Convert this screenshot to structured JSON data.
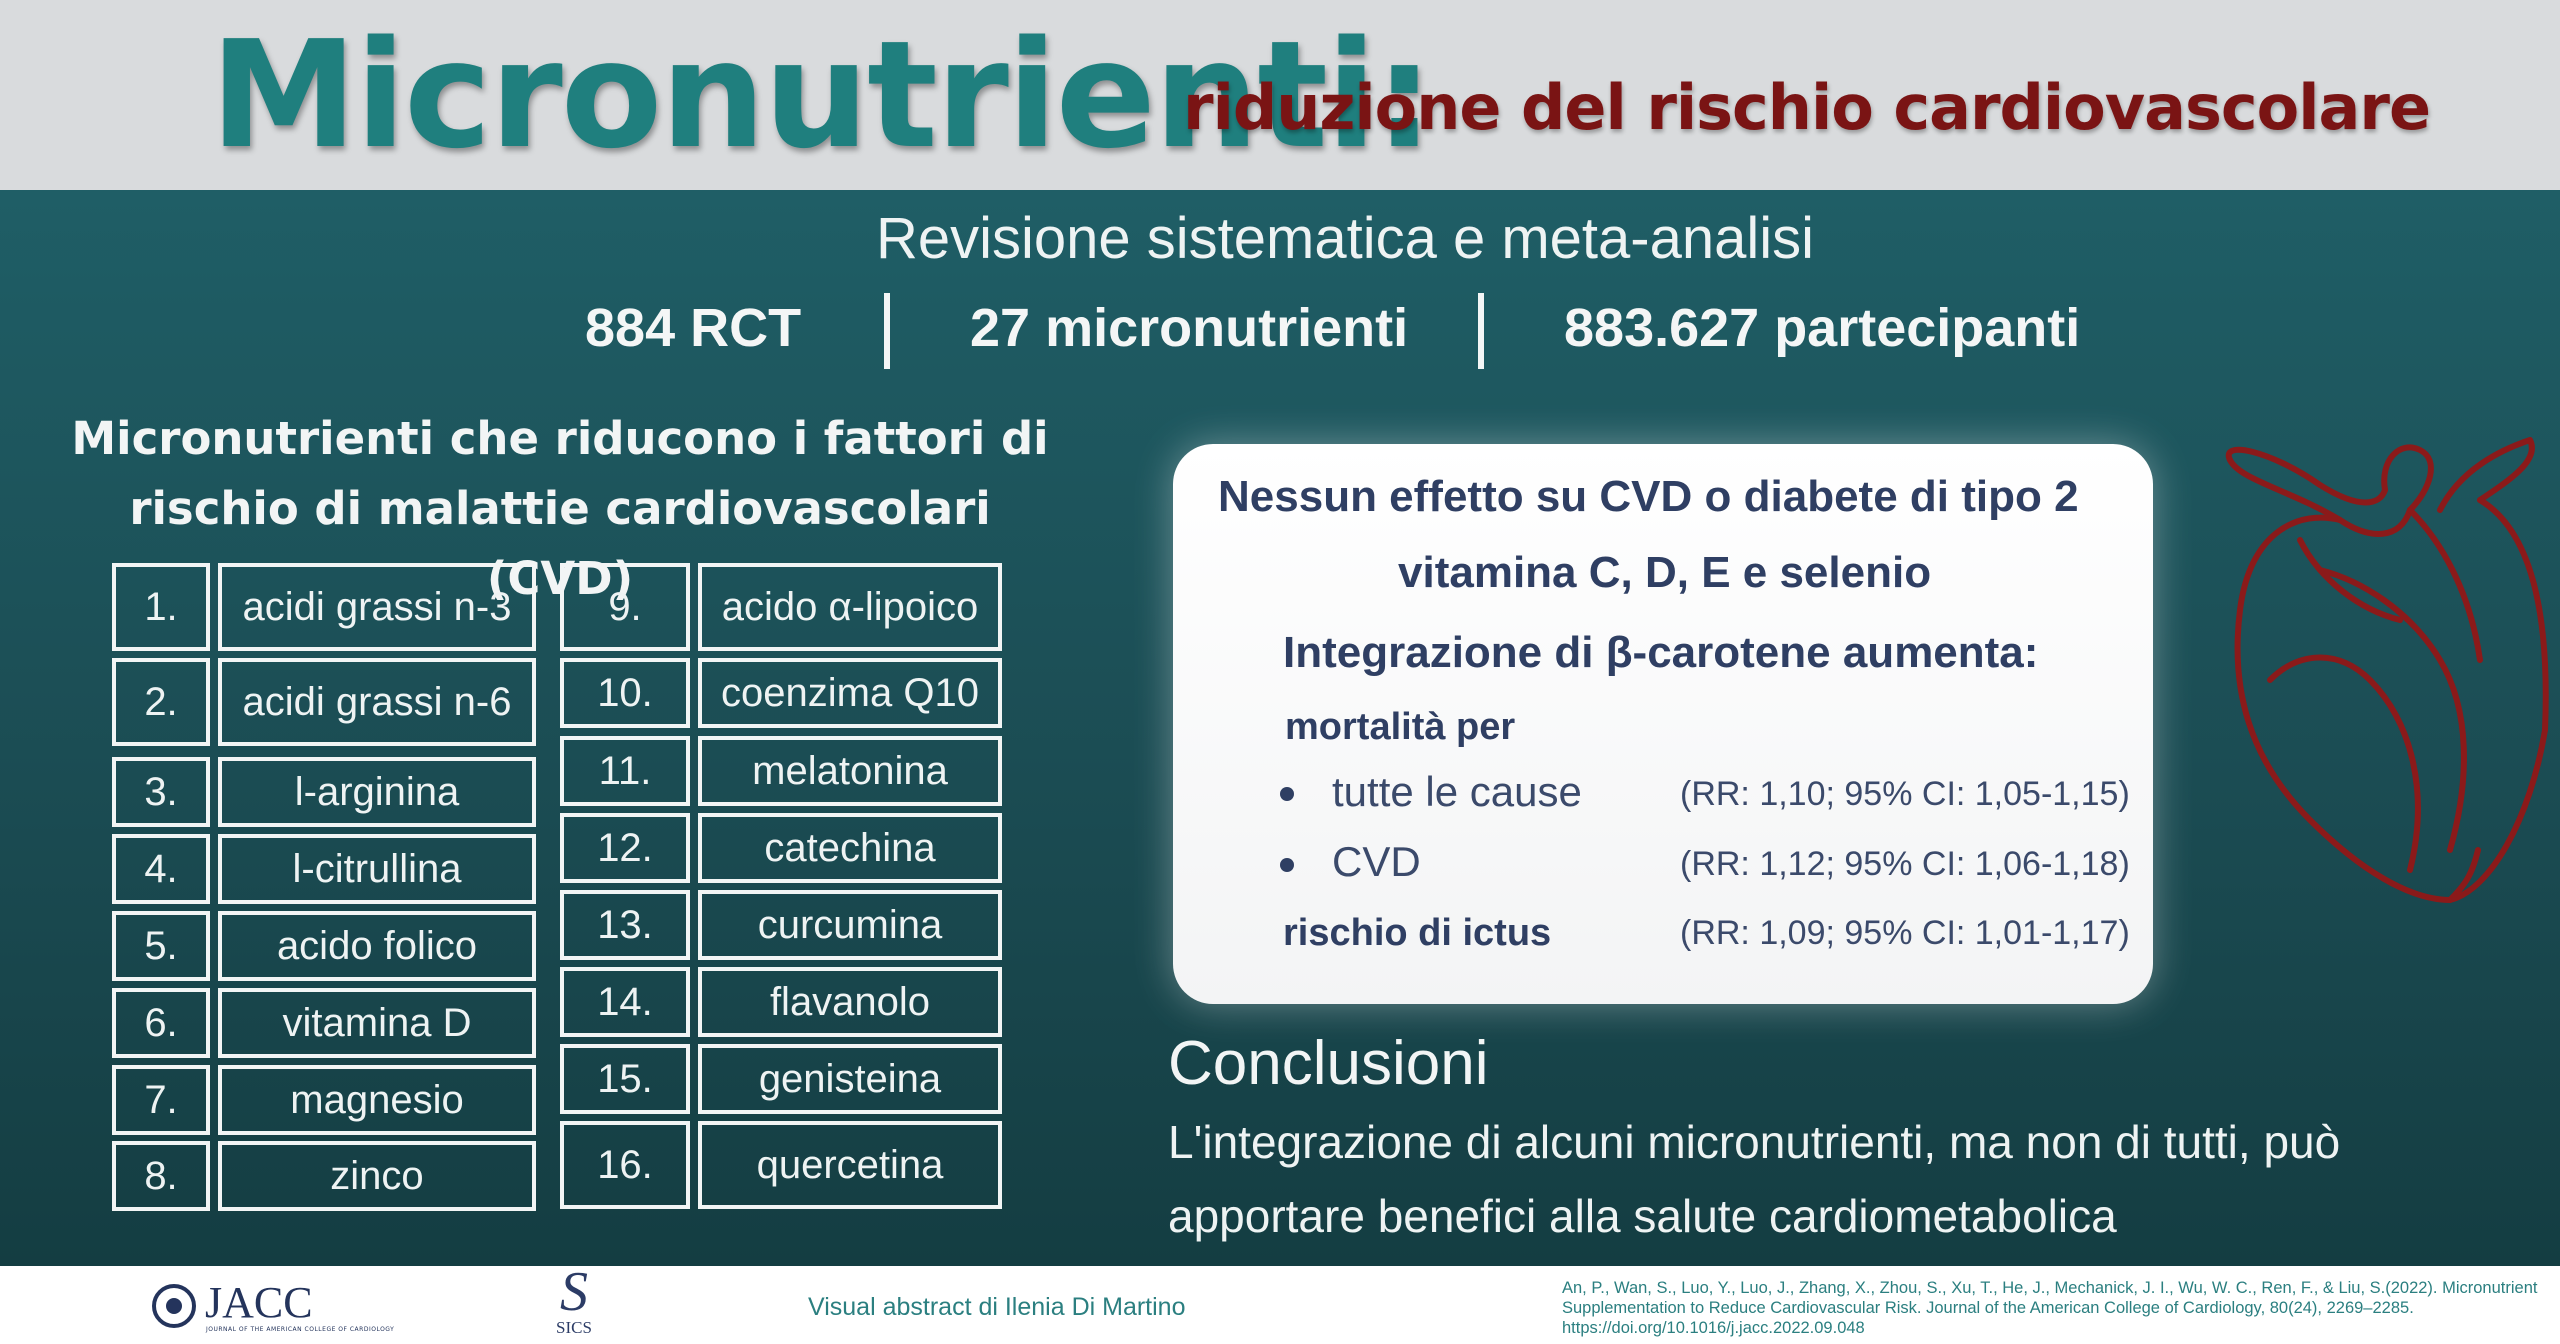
{
  "header": {
    "title": "Micronutrienti:",
    "subtitle": "riduzione del rischio cardiovascolare"
  },
  "study": {
    "type": "Revisione sistematica e meta-analisi",
    "stats": [
      "884 RCT",
      "27 micronutrienti",
      "883.627 partecipanti"
    ]
  },
  "left_panel": {
    "title_line1": "Micronutrienti che riducono i fattori di",
    "title_line2": "rischio di malattie cardiovascolari (CVD)",
    "items": [
      {
        "num": "1.",
        "name": "acidi grassi n-3"
      },
      {
        "num": "2.",
        "name": "acidi grassi n-6"
      },
      {
        "num": "3.",
        "name": "l-arginina"
      },
      {
        "num": "4.",
        "name": "l-citrullina"
      },
      {
        "num": "5.",
        "name": "acido folico"
      },
      {
        "num": "6.",
        "name": "vitamina D"
      },
      {
        "num": "7.",
        "name": "magnesio"
      },
      {
        "num": "8.",
        "name": "zinco"
      },
      {
        "num": "9.",
        "name": "acido α-lipoico"
      },
      {
        "num": "10.",
        "name": "coenzima Q10"
      },
      {
        "num": "11.",
        "name": "melatonina"
      },
      {
        "num": "12.",
        "name": "catechina"
      },
      {
        "num": "13.",
        "name": "curcumina"
      },
      {
        "num": "14.",
        "name": "flavanolo"
      },
      {
        "num": "15.",
        "name": "genisteina"
      },
      {
        "num": "16.",
        "name": "quercetina"
      }
    ]
  },
  "card": {
    "no_effect": "Nessun effetto su CVD o diabete di tipo 2",
    "no_effect_items": "vitamina C, D, E e selenio",
    "beta_heading": "Integrazione di β-carotene  aumenta:",
    "mortality_label": "mortalità per",
    "effects": [
      {
        "label": "tutte le cause",
        "rr": "(RR: 1,10; 95% CI: 1,05-1,15)"
      },
      {
        "label": "CVD",
        "rr": "(RR: 1,12; 95% CI: 1,06-1,18)"
      }
    ],
    "stroke_label": "rischio di ictus",
    "stroke_rr": "(RR: 1,09; 95% CI: 1,01-1,17)"
  },
  "conclusion": {
    "title": "Conclusioni",
    "text": "L'integrazione di alcuni micronutrienti, ma non di tutti, può apportare benefici alla salute cardiometabolica"
  },
  "footer": {
    "jacc": "JACC",
    "jacc_sub": "JOURNAL OF THE AMERICAN COLLEGE OF CARDIOLOGY",
    "sics_mark": "S",
    "sics": "SICS",
    "credit": "Visual abstract di Ilenia Di Martino",
    "citation": "An, P., Wan, S., Luo, Y., Luo, J., Zhang, X., Zhou, S., Xu, T., He, J., Mechanick, J. I., Wu, W. C., Ren, F., & Liu, S.(2022). Micronutrient Supplementation to Reduce Cardiovascular Risk. Journal of the American College of Cardiology, 80(24), 2269–2285. https://doi.org/10.1016/j.jacc.2022.09.048"
  },
  "colors": {
    "title": "#1f7f7e",
    "subtitle": "#7a1414",
    "background": "#1e5559",
    "heart": "#8b1a1a"
  }
}
